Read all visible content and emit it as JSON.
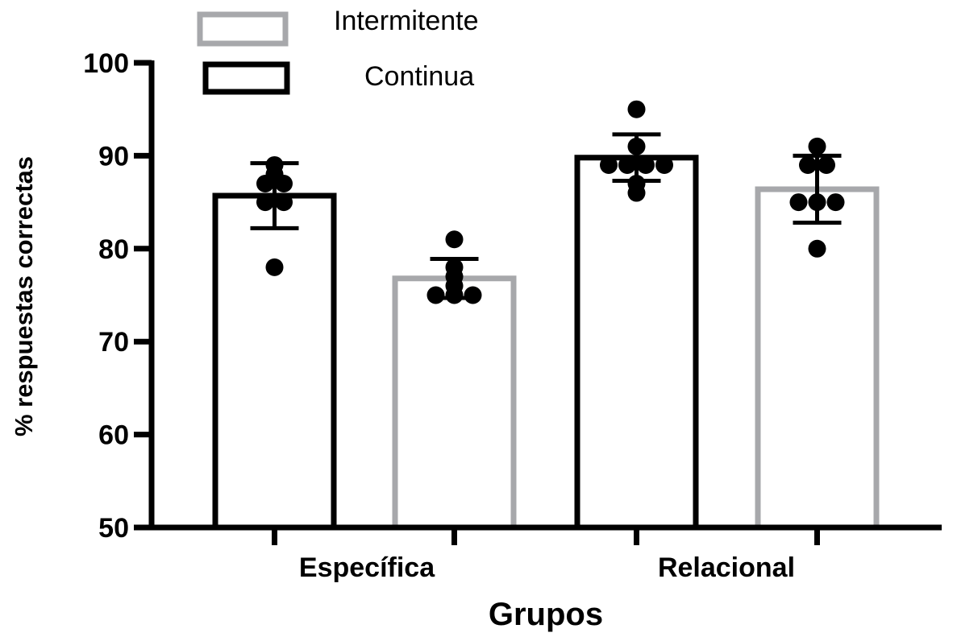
{
  "chart_data": {
    "type": "bar",
    "xlabel": "Grupos",
    "ylabel": "% respuestas correctas",
    "ylim": [
      50,
      100
    ],
    "yticks": [
      50,
      60,
      70,
      80,
      90,
      100
    ],
    "categories": [
      "Específica",
      "Relacional"
    ],
    "legend_position": "top-left",
    "grid": false,
    "series": [
      {
        "name": "Continua",
        "color": "#000000",
        "values": [
          85.7,
          89.8
        ],
        "error": [
          3.5,
          2.5
        ],
        "points": [
          [
            87,
            88,
            89,
            87,
            85,
            85,
            78
          ],
          [
            95,
            91,
            89,
            89,
            89,
            89,
            87,
            86
          ]
        ]
      },
      {
        "name": "Intermitente",
        "color": "#a7a8ab",
        "values": [
          76.8,
          86.4
        ],
        "error": [
          2.1,
          3.6
        ],
        "points": [
          [
            81,
            78,
            77,
            76,
            75,
            75,
            75
          ],
          [
            91,
            89,
            89,
            85,
            85,
            85,
            80
          ]
        ]
      }
    ]
  }
}
